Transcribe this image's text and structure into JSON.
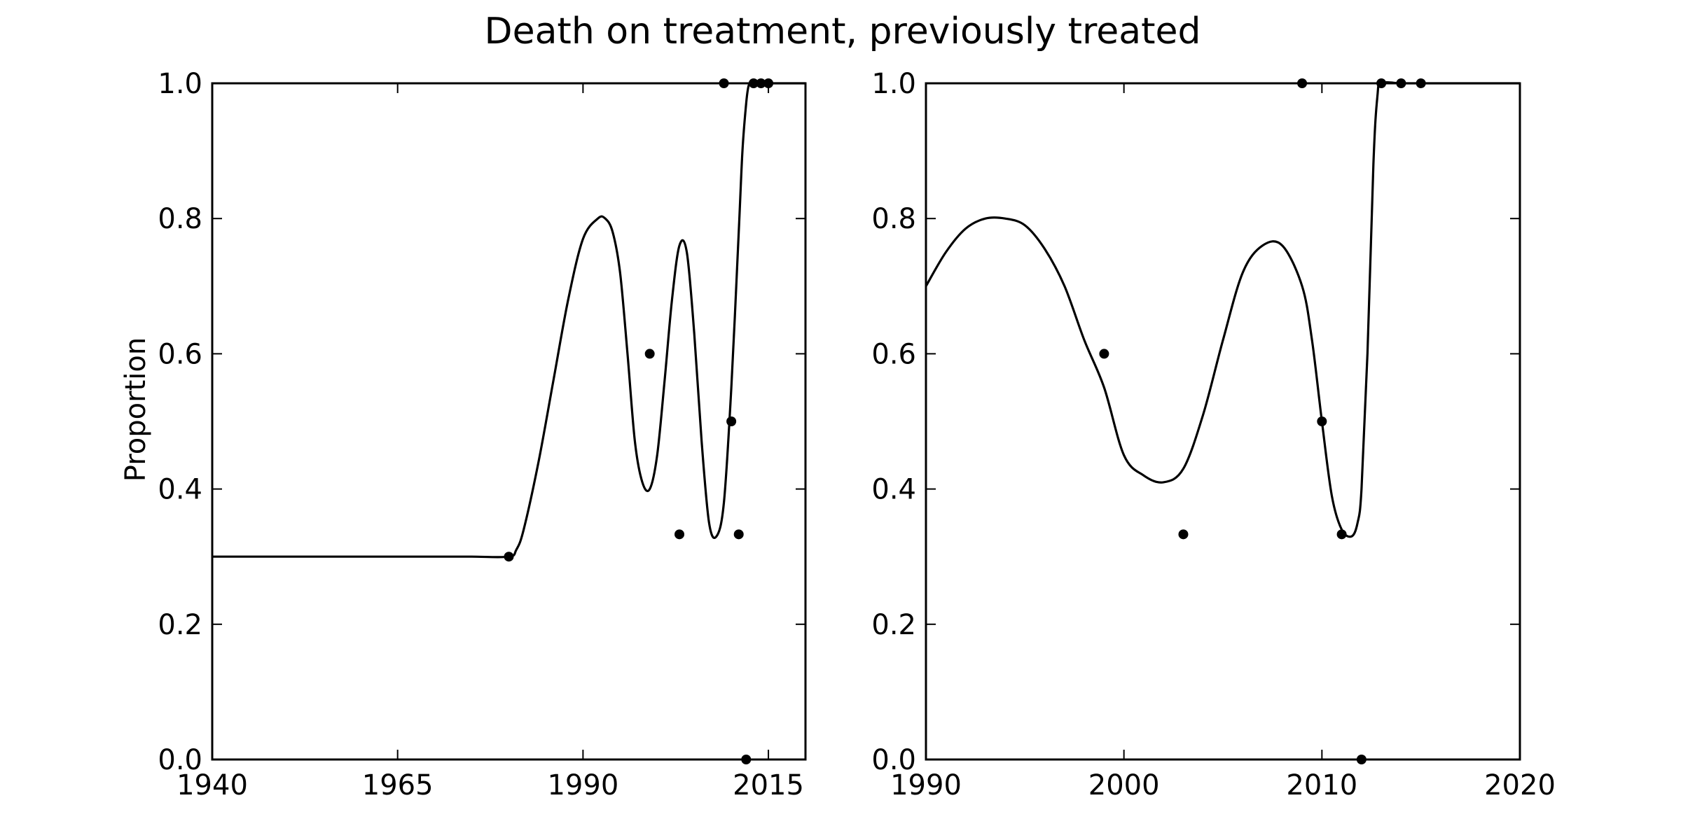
{
  "figure": {
    "title": "Death on treatment, previously treated"
  },
  "colors": {
    "line": "#000000",
    "points": "#000000",
    "background": "#ffffff"
  },
  "chart_data": [
    {
      "type": "line",
      "xlabel": "",
      "ylabel": "Proportion",
      "xlim": [
        1940,
        2020
      ],
      "ylim": [
        0.0,
        1.0
      ],
      "x_ticks": [
        1940,
        1965,
        1990,
        2015
      ],
      "y_ticks": [
        0.0,
        0.2,
        0.4,
        0.6,
        0.8,
        1.0
      ],
      "y_tick_labels": [
        "0.0",
        "0.2",
        "0.4",
        "0.6",
        "0.8",
        "1.0"
      ],
      "grid": false,
      "series": [
        {
          "kind": "curve",
          "x": [
            1940,
            1950,
            1960,
            1970,
            1975,
            1980,
            1981,
            1982,
            1984,
            1986,
            1988,
            1990,
            1992,
            1993,
            1994,
            1995,
            1996,
            1997,
            1998,
            1999,
            2000,
            2001,
            2002,
            2003,
            2004,
            2005,
            2006,
            2007,
            2008,
            2009,
            2010,
            2011,
            2011.5,
            2012,
            2012.3,
            2012.6,
            2012.8,
            2013,
            2014,
            2015,
            2016,
            2020
          ],
          "y": [
            0.3,
            0.3,
            0.3,
            0.3,
            0.3,
            0.3,
            0.31,
            0.34,
            0.44,
            0.56,
            0.68,
            0.77,
            0.8,
            0.8,
            0.78,
            0.72,
            0.6,
            0.47,
            0.41,
            0.4,
            0.45,
            0.56,
            0.68,
            0.76,
            0.75,
            0.63,
            0.47,
            0.35,
            0.33,
            0.38,
            0.55,
            0.78,
            0.9,
            0.97,
            0.995,
            1.0,
            1.0,
            1.0,
            1.0,
            1.0,
            1.0,
            1.0
          ]
        },
        {
          "kind": "points",
          "x": [
            1980,
            1999,
            2003,
            2009,
            2010,
            2011,
            2012,
            2013,
            2014,
            2015
          ],
          "y": [
            0.3,
            0.6,
            0.333,
            1.0,
            0.5,
            0.333,
            0.0,
            1.0,
            1.0,
            1.0
          ]
        }
      ]
    },
    {
      "type": "line",
      "xlabel": "",
      "ylabel": "",
      "xlim": [
        1990,
        2020
      ],
      "ylim": [
        0.0,
        1.0
      ],
      "x_ticks": [
        1990,
        2000,
        2010,
        2020
      ],
      "y_ticks": [
        0.0,
        0.2,
        0.4,
        0.6,
        0.8,
        1.0
      ],
      "y_tick_labels": [
        "0.0",
        "0.2",
        "0.4",
        "0.6",
        "0.8",
        "1.0"
      ],
      "grid": false,
      "series": [
        {
          "kind": "curve",
          "x": [
            1990,
            1991,
            1992,
            1993,
            1994,
            1995,
            1996,
            1997,
            1998,
            1999,
            2000,
            2001,
            2002,
            2003,
            2004,
            2005,
            2006,
            2007,
            2008,
            2009,
            2009.5,
            2010,
            2010.5,
            2011,
            2011.5,
            2011.8,
            2012,
            2012.3,
            2012.6,
            2012.8,
            2013,
            2014,
            2015,
            2016,
            2020
          ],
          "y": [
            0.7,
            0.75,
            0.785,
            0.8,
            0.8,
            0.79,
            0.755,
            0.7,
            0.62,
            0.55,
            0.45,
            0.42,
            0.41,
            0.43,
            0.51,
            0.62,
            0.72,
            0.76,
            0.76,
            0.7,
            0.62,
            0.5,
            0.39,
            0.34,
            0.33,
            0.35,
            0.4,
            0.6,
            0.88,
            0.98,
            1.0,
            1.0,
            1.0,
            1.0,
            1.0
          ]
        },
        {
          "kind": "points",
          "x": [
            1999,
            2003,
            2009,
            2010,
            2011,
            2012,
            2013,
            2014,
            2015
          ],
          "y": [
            0.6,
            0.333,
            1.0,
            0.5,
            0.333,
            0.0,
            1.0,
            1.0,
            1.0
          ]
        }
      ]
    }
  ]
}
